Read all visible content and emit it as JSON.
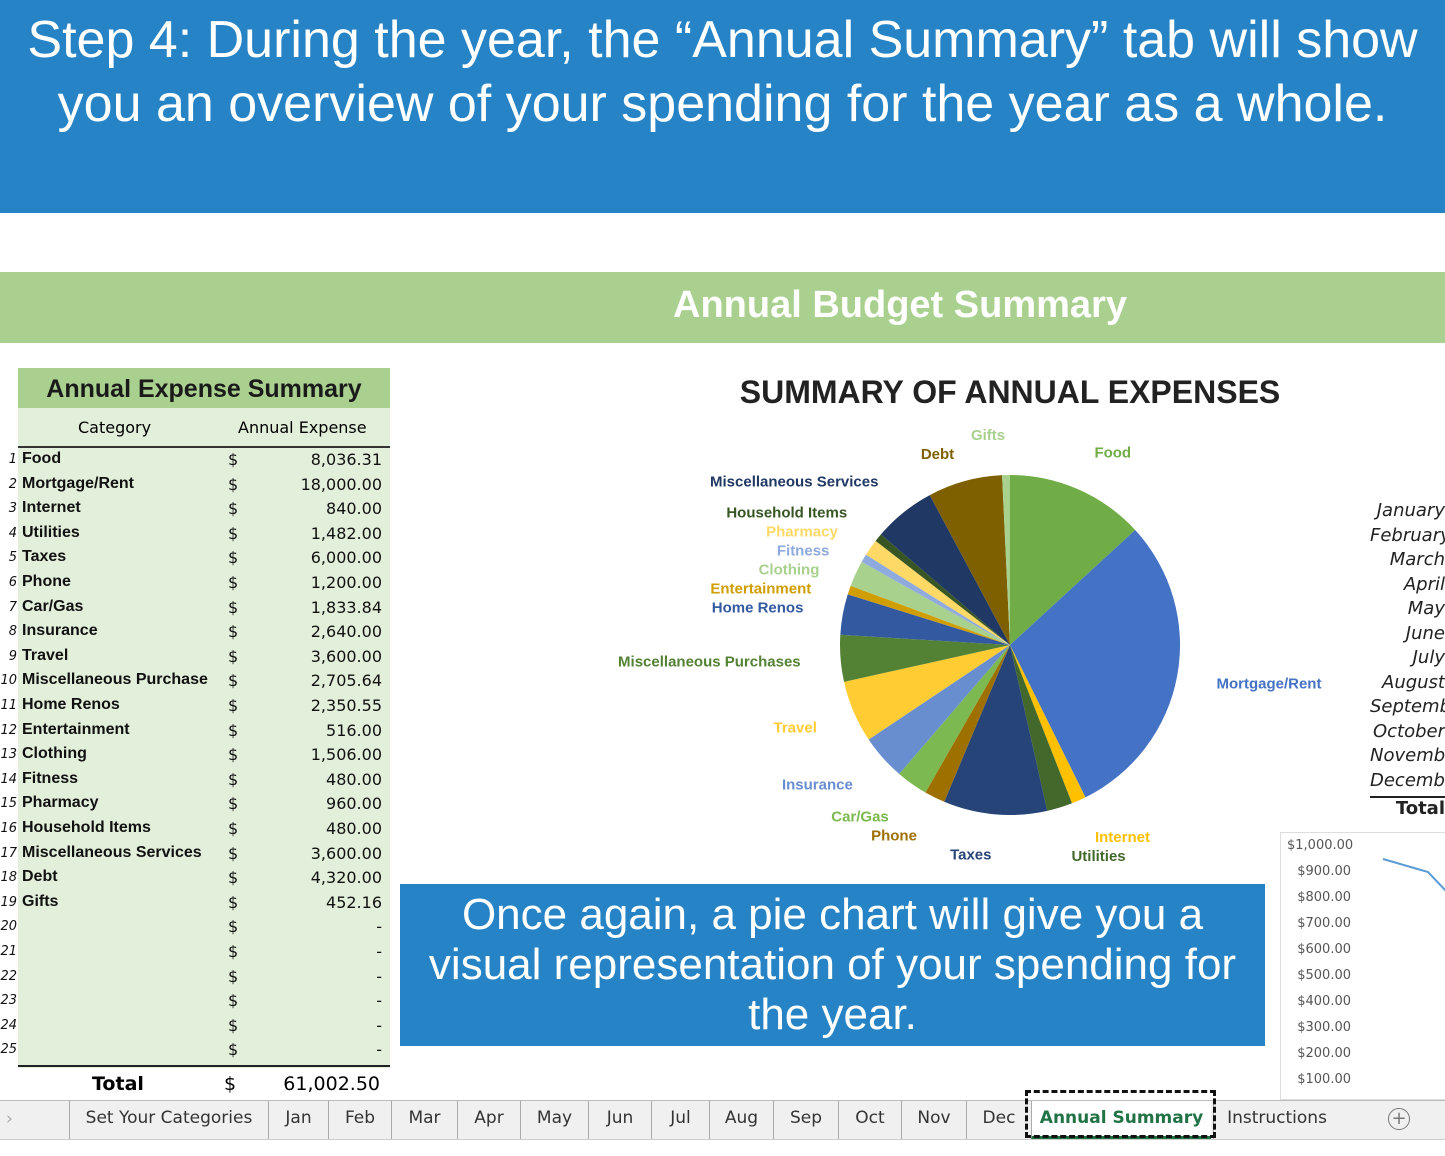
{
  "banner": {
    "text": "Step 4: During the year, the “Annual Summary” tab will show you an overview of your spending for the year as a whole."
  },
  "sheet_title": "Annual Budget Summary",
  "table": {
    "title": "Annual Expense Summary",
    "col_category": "Category",
    "col_expense": "Annual Expense",
    "rows": [
      {
        "n": "1",
        "cat": "Food",
        "amt": "8,036.31"
      },
      {
        "n": "2",
        "cat": "Mortgage/Rent",
        "amt": "18,000.00"
      },
      {
        "n": "3",
        "cat": "Internet",
        "amt": "840.00"
      },
      {
        "n": "4",
        "cat": "Utilities",
        "amt": "1,482.00"
      },
      {
        "n": "5",
        "cat": "Taxes",
        "amt": "6,000.00"
      },
      {
        "n": "6",
        "cat": "Phone",
        "amt": "1,200.00"
      },
      {
        "n": "7",
        "cat": "Car/Gas",
        "amt": "1,833.84"
      },
      {
        "n": "8",
        "cat": "Insurance",
        "amt": "2,640.00"
      },
      {
        "n": "9",
        "cat": "Travel",
        "amt": "3,600.00"
      },
      {
        "n": "10",
        "cat": "Miscellaneous Purchase",
        "amt": "2,705.64"
      },
      {
        "n": "11",
        "cat": "Home Renos",
        "amt": "2,350.55"
      },
      {
        "n": "12",
        "cat": "Entertainment",
        "amt": "516.00"
      },
      {
        "n": "13",
        "cat": "Clothing",
        "amt": "1,506.00"
      },
      {
        "n": "14",
        "cat": "Fitness",
        "amt": "480.00"
      },
      {
        "n": "15",
        "cat": "Pharmacy",
        "amt": "960.00"
      },
      {
        "n": "16",
        "cat": "Household Items",
        "amt": "480.00"
      },
      {
        "n": "17",
        "cat": "Miscellaneous Services",
        "amt": "3,600.00"
      },
      {
        "n": "18",
        "cat": "Debt",
        "amt": "4,320.00"
      },
      {
        "n": "19",
        "cat": "Gifts",
        "amt": "452.16"
      },
      {
        "n": "20",
        "cat": "",
        "amt": "-"
      },
      {
        "n": "21",
        "cat": "",
        "amt": "-"
      },
      {
        "n": "22",
        "cat": "",
        "amt": "-"
      },
      {
        "n": "23",
        "cat": "",
        "amt": "-"
      },
      {
        "n": "24",
        "cat": "",
        "amt": "-"
      },
      {
        "n": "25",
        "cat": "",
        "amt": "-"
      }
    ],
    "currency": "$",
    "total_label": "Total",
    "total_value": "61,002.50"
  },
  "overlay": {
    "text": "Once again, a pie chart will give you a visual representation of your spending for the year."
  },
  "chart_data": {
    "type": "pie",
    "title": "SUMMARY OF ANNUAL EXPENSES",
    "categories": [
      "Food",
      "Mortgage/Rent",
      "Internet",
      "Utilities",
      "Taxes",
      "Phone",
      "Car/Gas",
      "Insurance",
      "Travel",
      "Miscellaneous Purchases",
      "Home Renos",
      "Entertainment",
      "Clothing",
      "Fitness",
      "Pharmacy",
      "Household Items",
      "Miscellaneous Services",
      "Debt",
      "Gifts"
    ],
    "values": [
      8036.31,
      18000,
      840,
      1482,
      6000,
      1200,
      1833.84,
      2640,
      3600,
      2705.64,
      2350.55,
      516,
      1506,
      480,
      960,
      480,
      3600,
      4320,
      452.16
    ],
    "colors": [
      "#70ad47",
      "#4472c4",
      "#ffc000",
      "#43682b",
      "#264478",
      "#9e7000",
      "#7cb950",
      "#698ed0",
      "#ffcd33",
      "#548235",
      "#335aa1",
      "#d09e00",
      "#a9d18e",
      "#8faadc",
      "#ffd966",
      "#375623",
      "#203864",
      "#7f6000",
      "#a9d18e"
    ],
    "legend": "none"
  },
  "months": [
    "January",
    "February",
    "March",
    "April",
    "May",
    "June",
    "July",
    "August",
    "September",
    "October",
    "November",
    "December"
  ],
  "months_total": "Total",
  "line_chart": {
    "type": "line",
    "y_ticks": [
      "$1,000.00",
      "$900.00",
      "$800.00",
      "$700.00",
      "$600.00",
      "$500.00",
      "$400.00",
      "$300.00",
      "$200.00",
      "$100.00"
    ]
  },
  "tabs": [
    "Set Your Categories",
    "Jan",
    "Feb",
    "Mar",
    "Apr",
    "May",
    "Jun",
    "Jul",
    "Aug",
    "Sep",
    "Oct",
    "Nov",
    "Dec",
    "Annual Summary",
    "Instructions"
  ],
  "active_tab": "Annual Summary",
  "add_sheet_icon": "plus-circle-icon"
}
